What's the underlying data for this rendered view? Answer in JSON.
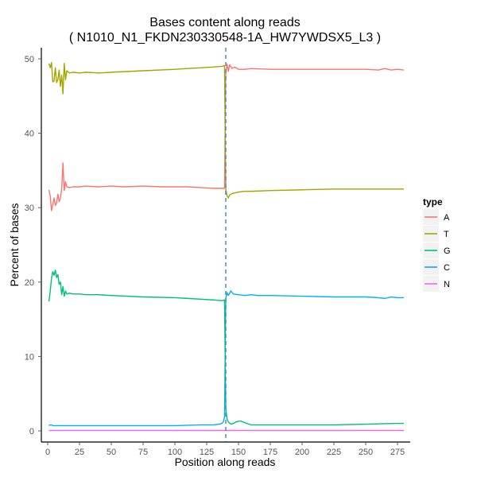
{
  "chart_data": {
    "type": "line",
    "title": "Bases content along reads",
    "subtitle": "( N1010_N1_FKDN230330548-1A_HW7YWDSX5_L3 )",
    "xlabel": "Position along reads",
    "ylabel": "Percent of bases",
    "xlim": [
      -5,
      285
    ],
    "ylim": [
      -1.5,
      51.5
    ],
    "x_ticks": [
      0,
      25,
      50,
      75,
      100,
      125,
      150,
      175,
      200,
      225,
      250,
      275
    ],
    "y_ticks": [
      0,
      10,
      20,
      30,
      40,
      50
    ],
    "grid": false,
    "legend": {
      "title": "type",
      "position": "right",
      "entries": [
        "A",
        "T",
        "G",
        "C",
        "N"
      ]
    },
    "vline": {
      "x": 140,
      "color": "#3a86c8"
    },
    "series": [
      {
        "name": "A",
        "color": "#F8766D",
        "points": [
          [
            1,
            32.4
          ],
          [
            2,
            31.5
          ],
          [
            3,
            29.6
          ],
          [
            4,
            30.4
          ],
          [
            5,
            31.3
          ],
          [
            6,
            30.3
          ],
          [
            7,
            30.6
          ],
          [
            8,
            31.8
          ],
          [
            9,
            30.8
          ],
          [
            10,
            31.3
          ],
          [
            11,
            32.5
          ],
          [
            12,
            36.0
          ],
          [
            13,
            32.3
          ],
          [
            14,
            33.5
          ],
          [
            15,
            32.8
          ],
          [
            17,
            32.7
          ],
          [
            20,
            32.8
          ],
          [
            25,
            32.8
          ],
          [
            30,
            32.9
          ],
          [
            40,
            32.8
          ],
          [
            50,
            32.9
          ],
          [
            60,
            32.8
          ],
          [
            75,
            32.9
          ],
          [
            90,
            32.8
          ],
          [
            100,
            32.8
          ],
          [
            110,
            32.8
          ],
          [
            120,
            32.7
          ],
          [
            130,
            32.6
          ],
          [
            137,
            32.6
          ],
          [
            139,
            32.6
          ],
          [
            140,
            48.2
          ],
          [
            141,
            49.3
          ],
          [
            142,
            48.3
          ],
          [
            143,
            49.2
          ],
          [
            145,
            48.7
          ],
          [
            147,
            48.9
          ],
          [
            150,
            48.6
          ],
          [
            155,
            48.6
          ],
          [
            160,
            48.7
          ],
          [
            175,
            48.6
          ],
          [
            200,
            48.6
          ],
          [
            225,
            48.6
          ],
          [
            250,
            48.6
          ],
          [
            260,
            48.5
          ],
          [
            265,
            48.7
          ],
          [
            270,
            48.5
          ],
          [
            275,
            48.6
          ],
          [
            280,
            48.5
          ]
        ]
      },
      {
        "name": "T",
        "color": "#A3A500",
        "points": [
          [
            1,
            49.4
          ],
          [
            2,
            48.8
          ],
          [
            3,
            49.5
          ],
          [
            4,
            46.9
          ],
          [
            5,
            47.0
          ],
          [
            6,
            48.8
          ],
          [
            7,
            46.8
          ],
          [
            8,
            47.2
          ],
          [
            9,
            48.5
          ],
          [
            10,
            46.3
          ],
          [
            11,
            47.8
          ],
          [
            12,
            45.3
          ],
          [
            13,
            49.4
          ],
          [
            14,
            47.2
          ],
          [
            15,
            48.4
          ],
          [
            17,
            48.1
          ],
          [
            20,
            48.2
          ],
          [
            25,
            48.1
          ],
          [
            30,
            48.2
          ],
          [
            40,
            48.1
          ],
          [
            50,
            48.2
          ],
          [
            75,
            48.4
          ],
          [
            100,
            48.6
          ],
          [
            110,
            48.7
          ],
          [
            120,
            48.8
          ],
          [
            130,
            48.9
          ],
          [
            137,
            49.0
          ],
          [
            139,
            49.1
          ],
          [
            140,
            32.4
          ],
          [
            141,
            31.6
          ],
          [
            142,
            31.3
          ],
          [
            143,
            31.7
          ],
          [
            145,
            31.9
          ],
          [
            150,
            32.1
          ],
          [
            155,
            32.2
          ],
          [
            160,
            32.2
          ],
          [
            175,
            32.3
          ],
          [
            200,
            32.4
          ],
          [
            225,
            32.5
          ],
          [
            250,
            32.5
          ],
          [
            275,
            32.5
          ],
          [
            280,
            32.5
          ]
        ]
      },
      {
        "name": "G",
        "color": "#00BF7D",
        "points": [
          [
            1,
            17.4
          ],
          [
            2,
            18.8
          ],
          [
            3,
            20.5
          ],
          [
            4,
            21.4
          ],
          [
            5,
            20.9
          ],
          [
            6,
            21.6
          ],
          [
            7,
            20.6
          ],
          [
            8,
            21.0
          ],
          [
            9,
            19.7
          ],
          [
            10,
            20.0
          ],
          [
            11,
            18.3
          ],
          [
            12,
            19.4
          ],
          [
            13,
            18.1
          ],
          [
            14,
            18.8
          ],
          [
            15,
            18.4
          ],
          [
            17,
            18.5
          ],
          [
            20,
            18.4
          ],
          [
            25,
            18.4
          ],
          [
            30,
            18.3
          ],
          [
            40,
            18.3
          ],
          [
            50,
            18.2
          ],
          [
            75,
            18.0
          ],
          [
            100,
            17.9
          ],
          [
            110,
            17.8
          ],
          [
            120,
            17.7
          ],
          [
            130,
            17.6
          ],
          [
            137,
            17.5
          ],
          [
            139,
            17.6
          ],
          [
            140,
            3.0
          ],
          [
            141,
            1.6
          ],
          [
            142,
            1.2
          ],
          [
            144,
            0.9
          ],
          [
            146,
            1.0
          ],
          [
            148,
            1.2
          ],
          [
            150,
            1.3
          ],
          [
            152,
            1.3
          ],
          [
            155,
            1.1
          ],
          [
            160,
            0.8
          ],
          [
            175,
            0.8
          ],
          [
            200,
            0.8
          ],
          [
            225,
            0.8
          ],
          [
            250,
            0.9
          ],
          [
            275,
            1.0
          ],
          [
            280,
            1.0
          ]
        ]
      },
      {
        "name": "C",
        "color": "#00B0F6",
        "points": [
          [
            1,
            0.7
          ],
          [
            2,
            0.8
          ],
          [
            3,
            0.8
          ],
          [
            4,
            0.7
          ],
          [
            5,
            0.7
          ],
          [
            10,
            0.7
          ],
          [
            15,
            0.7
          ],
          [
            20,
            0.7
          ],
          [
            50,
            0.7
          ],
          [
            75,
            0.7
          ],
          [
            100,
            0.7
          ],
          [
            120,
            0.8
          ],
          [
            130,
            0.8
          ],
          [
            135,
            0.9
          ],
          [
            137,
            1.0
          ],
          [
            138,
            1.2
          ],
          [
            139,
            1.8
          ],
          [
            140,
            17.8
          ],
          [
            141,
            18.6
          ],
          [
            142,
            18.2
          ],
          [
            144,
            18.8
          ],
          [
            146,
            18.4
          ],
          [
            150,
            18.3
          ],
          [
            155,
            18.2
          ],
          [
            160,
            18.3
          ],
          [
            165,
            18.2
          ],
          [
            175,
            18.2
          ],
          [
            200,
            18.1
          ],
          [
            225,
            18.0
          ],
          [
            250,
            18.0
          ],
          [
            260,
            17.9
          ],
          [
            265,
            17.8
          ],
          [
            270,
            18.0
          ],
          [
            275,
            17.9
          ],
          [
            280,
            17.9
          ]
        ]
      },
      {
        "name": "N",
        "color": "#E76BF3",
        "points": [
          [
            1,
            0.05
          ],
          [
            50,
            0.05
          ],
          [
            100,
            0.05
          ],
          [
            140,
            0.05
          ],
          [
            200,
            0.05
          ],
          [
            280,
            0.05
          ]
        ]
      }
    ]
  }
}
